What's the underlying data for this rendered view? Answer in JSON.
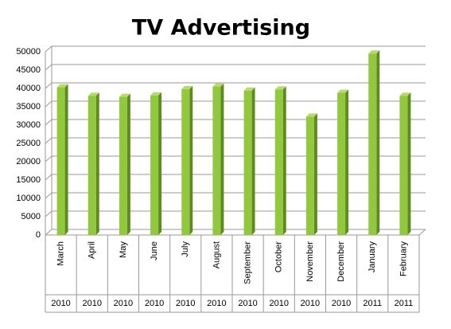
{
  "chart_data": {
    "type": "bar",
    "title": "TV Advertising",
    "categories": [
      "March",
      "April",
      "May",
      "June",
      "July",
      "August",
      "September",
      "October",
      "November",
      "December",
      "January",
      "February"
    ],
    "years": [
      "2010",
      "2010",
      "2010",
      "2010",
      "2010",
      "2010",
      "2010",
      "2010",
      "2010",
      "2010",
      "2011",
      "2011"
    ],
    "values": [
      40300,
      38000,
      37700,
      38100,
      39800,
      40500,
      39400,
      39700,
      32300,
      38800,
      49500,
      38000
    ],
    "color": "#92c83e",
    "ylim": [
      0,
      50000
    ],
    "yticks": [
      0,
      5000,
      10000,
      15000,
      20000,
      25000,
      30000,
      35000,
      40000,
      45000,
      50000
    ],
    "grid": true
  }
}
